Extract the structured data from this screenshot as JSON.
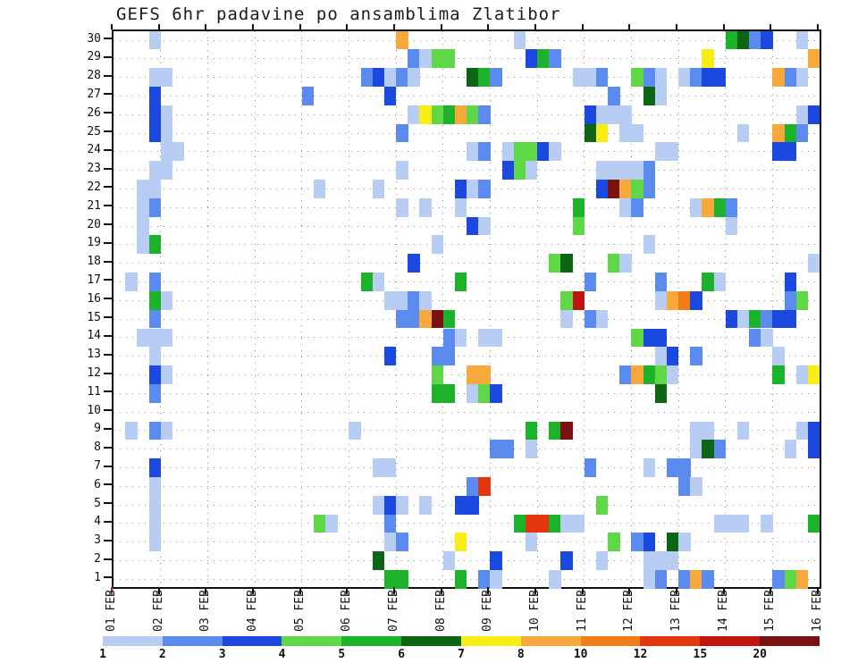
{
  "title": "GEFS 6hr padavine po ansamblima Zlatibor",
  "chart_data": {
    "type": "heatmap",
    "title": "GEFS 6hr padavine po ansamblima Zlatibor",
    "description": "6-hourly precipitation per ensemble member (1-30), 01 FEB - 16 FEB",
    "x_tick_labels": [
      "01 FEB",
      "02 FEB",
      "03 FEB",
      "04 FEB",
      "05 FEB",
      "06 FEB",
      "07 FEB",
      "08 FEB",
      "09 FEB",
      "10 FEB",
      "11 FEB",
      "12 FEB",
      "13 FEB",
      "14 FEB",
      "15 FEB",
      "16 FEB"
    ],
    "y_tick_labels": [
      "30",
      "29",
      "28",
      "27",
      "26",
      "25",
      "24",
      "23",
      "22",
      "21",
      "20",
      "19",
      "18",
      "17",
      "16",
      "15",
      "14",
      "13",
      "12",
      "11",
      "10",
      "9",
      "8",
      "7",
      "6",
      "5",
      "4",
      "3",
      "2",
      "1"
    ],
    "columns_per_day": 4,
    "n_columns": 60,
    "n_members": 30,
    "grid": true,
    "legend_position": "bottom",
    "legend": {
      "tick_labels": [
        "1",
        "2",
        "3",
        "4",
        "5",
        "6",
        "7",
        "8",
        "10",
        "12",
        "15",
        "20"
      ],
      "colors": [
        "#b7cdf4",
        "#5c8bf0",
        "#1b49e0",
        "#5fd848",
        "#1cb32b",
        "#0d6614",
        "#f8ee15",
        "#f7a93b",
        "#f57d17",
        "#e5370f",
        "#c11411",
        "#7c1112"
      ]
    },
    "palette": {
      "L": "#b7cdf4",
      "B": "#5c8bf0",
      "D": "#1b49e0",
      "g": "#5fd848",
      "G": "#1cb32b",
      "DG": "#0d6614",
      "Y": "#f8ee15",
      "O": "#f7a93b",
      "DO": "#f57d17",
      "R": "#e5370f",
      "RR": "#c11411",
      "DR": "#7c1112"
    },
    "level_ranges": {
      "L": "1-2",
      "B": "2-3",
      "D": "3-4",
      "g": "4-5",
      "G": "5-6",
      "DG": "6-7",
      "Y": "7-8",
      "O": "8-10",
      "DO": "10-12",
      "R": "12-15",
      "RR": "15-20",
      "DR": ">20"
    },
    "cells": [
      [
        30,
        3,
        "L"
      ],
      [
        30,
        24,
        "O"
      ],
      [
        30,
        34,
        "L"
      ],
      [
        30,
        52,
        "G"
      ],
      [
        30,
        53,
        "DG"
      ],
      [
        30,
        54,
        "B"
      ],
      [
        30,
        55,
        "D"
      ],
      [
        30,
        58,
        "L"
      ],
      [
        29,
        25,
        "B"
      ],
      [
        29,
        26,
        "L"
      ],
      [
        29,
        27,
        "g"
      ],
      [
        29,
        28,
        "g"
      ],
      [
        29,
        35,
        "D"
      ],
      [
        29,
        36,
        "G"
      ],
      [
        29,
        37,
        "B"
      ],
      [
        29,
        50,
        "Y"
      ],
      [
        29,
        59,
        "O"
      ],
      [
        28,
        3,
        "L"
      ],
      [
        28,
        4,
        "L"
      ],
      [
        28,
        21,
        "B"
      ],
      [
        28,
        22,
        "D"
      ],
      [
        28,
        23,
        "L"
      ],
      [
        28,
        24,
        "B"
      ],
      [
        28,
        25,
        "L"
      ],
      [
        28,
        30,
        "DG"
      ],
      [
        28,
        31,
        "G"
      ],
      [
        28,
        32,
        "B"
      ],
      [
        28,
        39,
        "L"
      ],
      [
        28,
        40,
        "L"
      ],
      [
        28,
        41,
        "B"
      ],
      [
        28,
        44,
        "g"
      ],
      [
        28,
        45,
        "B"
      ],
      [
        28,
        46,
        "L"
      ],
      [
        28,
        48,
        "L"
      ],
      [
        28,
        49,
        "B"
      ],
      [
        28,
        50,
        "D"
      ],
      [
        28,
        51,
        "D"
      ],
      [
        28,
        56,
        "O"
      ],
      [
        28,
        57,
        "B"
      ],
      [
        28,
        58,
        "L"
      ],
      [
        27,
        3,
        "D"
      ],
      [
        27,
        16,
        "B"
      ],
      [
        27,
        23,
        "D"
      ],
      [
        27,
        42,
        "B"
      ],
      [
        27,
        45,
        "DG"
      ],
      [
        27,
        46,
        "L"
      ],
      [
        26,
        3,
        "D"
      ],
      [
        26,
        4,
        "L"
      ],
      [
        26,
        25,
        "L"
      ],
      [
        26,
        26,
        "Y"
      ],
      [
        26,
        27,
        "g"
      ],
      [
        26,
        28,
        "G"
      ],
      [
        26,
        29,
        "O"
      ],
      [
        26,
        30,
        "g"
      ],
      [
        26,
        31,
        "B"
      ],
      [
        26,
        40,
        "D"
      ],
      [
        26,
        41,
        "L"
      ],
      [
        26,
        42,
        "L"
      ],
      [
        26,
        43,
        "L"
      ],
      [
        26,
        58,
        "L"
      ],
      [
        26,
        59,
        "D"
      ],
      [
        25,
        3,
        "D"
      ],
      [
        25,
        4,
        "L"
      ],
      [
        25,
        24,
        "B"
      ],
      [
        25,
        40,
        "DG"
      ],
      [
        25,
        41,
        "Y"
      ],
      [
        25,
        43,
        "L"
      ],
      [
        25,
        44,
        "L"
      ],
      [
        25,
        53,
        "L"
      ],
      [
        25,
        56,
        "O"
      ],
      [
        25,
        57,
        "G"
      ],
      [
        25,
        58,
        "B"
      ],
      [
        24,
        4,
        "L"
      ],
      [
        24,
        5,
        "L"
      ],
      [
        24,
        30,
        "L"
      ],
      [
        24,
        31,
        "B"
      ],
      [
        24,
        33,
        "L"
      ],
      [
        24,
        34,
        "g"
      ],
      [
        24,
        35,
        "g"
      ],
      [
        24,
        36,
        "D"
      ],
      [
        24,
        37,
        "L"
      ],
      [
        24,
        46,
        "L"
      ],
      [
        24,
        47,
        "L"
      ],
      [
        24,
        56,
        "D"
      ],
      [
        24,
        57,
        "D"
      ],
      [
        23,
        3,
        "L"
      ],
      [
        23,
        4,
        "L"
      ],
      [
        23,
        24,
        "L"
      ],
      [
        23,
        33,
        "D"
      ],
      [
        23,
        34,
        "g"
      ],
      [
        23,
        35,
        "L"
      ],
      [
        23,
        41,
        "L"
      ],
      [
        23,
        42,
        "L"
      ],
      [
        23,
        43,
        "L"
      ],
      [
        23,
        44,
        "L"
      ],
      [
        23,
        45,
        "B"
      ],
      [
        22,
        2,
        "L"
      ],
      [
        22,
        3,
        "L"
      ],
      [
        22,
        17,
        "L"
      ],
      [
        22,
        22,
        "L"
      ],
      [
        22,
        29,
        "D"
      ],
      [
        22,
        30,
        "L"
      ],
      [
        22,
        31,
        "B"
      ],
      [
        22,
        41,
        "D"
      ],
      [
        22,
        42,
        "DR"
      ],
      [
        22,
        43,
        "O"
      ],
      [
        22,
        44,
        "g"
      ],
      [
        22,
        45,
        "B"
      ],
      [
        21,
        2,
        "L"
      ],
      [
        21,
        3,
        "B"
      ],
      [
        21,
        24,
        "L"
      ],
      [
        21,
        26,
        "L"
      ],
      [
        21,
        29,
        "L"
      ],
      [
        21,
        39,
        "G"
      ],
      [
        21,
        43,
        "L"
      ],
      [
        21,
        44,
        "B"
      ],
      [
        21,
        49,
        "L"
      ],
      [
        21,
        50,
        "O"
      ],
      [
        21,
        51,
        "G"
      ],
      [
        21,
        52,
        "B"
      ],
      [
        20,
        2,
        "L"
      ],
      [
        20,
        30,
        "D"
      ],
      [
        20,
        31,
        "L"
      ],
      [
        20,
        39,
        "g"
      ],
      [
        20,
        52,
        "L"
      ],
      [
        19,
        2,
        "L"
      ],
      [
        19,
        3,
        "G"
      ],
      [
        19,
        27,
        "L"
      ],
      [
        19,
        45,
        "L"
      ],
      [
        18,
        25,
        "D"
      ],
      [
        18,
        37,
        "g"
      ],
      [
        18,
        38,
        "DG"
      ],
      [
        18,
        42,
        "g"
      ],
      [
        18,
        43,
        "L"
      ],
      [
        18,
        59,
        "L"
      ],
      [
        17,
        1,
        "L"
      ],
      [
        17,
        3,
        "B"
      ],
      [
        17,
        21,
        "G"
      ],
      [
        17,
        22,
        "L"
      ],
      [
        17,
        29,
        "G"
      ],
      [
        17,
        40,
        "B"
      ],
      [
        17,
        46,
        "B"
      ],
      [
        17,
        50,
        "G"
      ],
      [
        17,
        51,
        "L"
      ],
      [
        17,
        57,
        "D"
      ],
      [
        16,
        3,
        "G"
      ],
      [
        16,
        4,
        "L"
      ],
      [
        16,
        23,
        "L"
      ],
      [
        16,
        24,
        "L"
      ],
      [
        16,
        25,
        "B"
      ],
      [
        16,
        26,
        "L"
      ],
      [
        16,
        38,
        "g"
      ],
      [
        16,
        39,
        "RR"
      ],
      [
        16,
        46,
        "L"
      ],
      [
        16,
        47,
        "O"
      ],
      [
        16,
        48,
        "DO"
      ],
      [
        16,
        49,
        "D"
      ],
      [
        16,
        57,
        "B"
      ],
      [
        16,
        58,
        "g"
      ],
      [
        15,
        3,
        "B"
      ],
      [
        15,
        24,
        "B"
      ],
      [
        15,
        25,
        "B"
      ],
      [
        15,
        26,
        "O"
      ],
      [
        15,
        27,
        "DR"
      ],
      [
        15,
        28,
        "G"
      ],
      [
        15,
        38,
        "L"
      ],
      [
        15,
        40,
        "B"
      ],
      [
        15,
        41,
        "L"
      ],
      [
        15,
        52,
        "D"
      ],
      [
        15,
        53,
        "L"
      ],
      [
        15,
        54,
        "G"
      ],
      [
        15,
        55,
        "B"
      ],
      [
        15,
        56,
        "D"
      ],
      [
        15,
        57,
        "D"
      ],
      [
        14,
        2,
        "L"
      ],
      [
        14,
        3,
        "L"
      ],
      [
        14,
        4,
        "L"
      ],
      [
        14,
        28,
        "B"
      ],
      [
        14,
        29,
        "L"
      ],
      [
        14,
        31,
        "L"
      ],
      [
        14,
        32,
        "L"
      ],
      [
        14,
        44,
        "g"
      ],
      [
        14,
        45,
        "D"
      ],
      [
        14,
        46,
        "D"
      ],
      [
        14,
        54,
        "B"
      ],
      [
        14,
        55,
        "L"
      ],
      [
        13,
        3,
        "L"
      ],
      [
        13,
        23,
        "D"
      ],
      [
        13,
        27,
        "B"
      ],
      [
        13,
        28,
        "B"
      ],
      [
        13,
        46,
        "L"
      ],
      [
        13,
        47,
        "D"
      ],
      [
        13,
        49,
        "B"
      ],
      [
        13,
        56,
        "L"
      ],
      [
        12,
        3,
        "D"
      ],
      [
        12,
        4,
        "L"
      ],
      [
        12,
        27,
        "g"
      ],
      [
        12,
        30,
        "O"
      ],
      [
        12,
        31,
        "O"
      ],
      [
        12,
        43,
        "B"
      ],
      [
        12,
        44,
        "O"
      ],
      [
        12,
        45,
        "G"
      ],
      [
        12,
        46,
        "g"
      ],
      [
        12,
        47,
        "L"
      ],
      [
        12,
        56,
        "G"
      ],
      [
        12,
        58,
        "L"
      ],
      [
        12,
        59,
        "Y"
      ],
      [
        11,
        3,
        "B"
      ],
      [
        11,
        27,
        "G"
      ],
      [
        11,
        28,
        "G"
      ],
      [
        11,
        30,
        "L"
      ],
      [
        11,
        31,
        "g"
      ],
      [
        11,
        32,
        "D"
      ],
      [
        11,
        46,
        "DG"
      ],
      [
        9,
        1,
        "L"
      ],
      [
        9,
        3,
        "B"
      ],
      [
        9,
        4,
        "L"
      ],
      [
        9,
        20,
        "L"
      ],
      [
        9,
        35,
        "G"
      ],
      [
        9,
        37,
        "G"
      ],
      [
        9,
        38,
        "DR"
      ],
      [
        9,
        49,
        "L"
      ],
      [
        9,
        50,
        "L"
      ],
      [
        9,
        53,
        "L"
      ],
      [
        9,
        58,
        "L"
      ],
      [
        9,
        59,
        "D"
      ],
      [
        8,
        32,
        "B"
      ],
      [
        8,
        33,
        "B"
      ],
      [
        8,
        35,
        "L"
      ],
      [
        8,
        49,
        "L"
      ],
      [
        8,
        50,
        "DG"
      ],
      [
        8,
        51,
        "B"
      ],
      [
        8,
        57,
        "L"
      ],
      [
        8,
        59,
        "D"
      ],
      [
        7,
        3,
        "D"
      ],
      [
        7,
        22,
        "L"
      ],
      [
        7,
        23,
        "L"
      ],
      [
        7,
        40,
        "B"
      ],
      [
        7,
        45,
        "L"
      ],
      [
        7,
        47,
        "B"
      ],
      [
        7,
        48,
        "B"
      ],
      [
        6,
        3,
        "L"
      ],
      [
        6,
        30,
        "B"
      ],
      [
        6,
        31,
        "R"
      ],
      [
        6,
        48,
        "B"
      ],
      [
        6,
        49,
        "L"
      ],
      [
        5,
        3,
        "L"
      ],
      [
        5,
        22,
        "L"
      ],
      [
        5,
        23,
        "D"
      ],
      [
        5,
        24,
        "L"
      ],
      [
        5,
        26,
        "L"
      ],
      [
        5,
        29,
        "D"
      ],
      [
        5,
        30,
        "D"
      ],
      [
        5,
        41,
        "g"
      ],
      [
        4,
        3,
        "L"
      ],
      [
        4,
        17,
        "g"
      ],
      [
        4,
        18,
        "L"
      ],
      [
        4,
        23,
        "B"
      ],
      [
        4,
        34,
        "G"
      ],
      [
        4,
        35,
        "R"
      ],
      [
        4,
        36,
        "R"
      ],
      [
        4,
        37,
        "G"
      ],
      [
        4,
        38,
        "L"
      ],
      [
        4,
        39,
        "L"
      ],
      [
        4,
        51,
        "L"
      ],
      [
        4,
        52,
        "L"
      ],
      [
        4,
        53,
        "L"
      ],
      [
        4,
        55,
        "L"
      ],
      [
        4,
        59,
        "G"
      ],
      [
        3,
        3,
        "L"
      ],
      [
        3,
        23,
        "L"
      ],
      [
        3,
        24,
        "B"
      ],
      [
        3,
        29,
        "Y"
      ],
      [
        3,
        35,
        "L"
      ],
      [
        3,
        42,
        "g"
      ],
      [
        3,
        44,
        "B"
      ],
      [
        3,
        45,
        "D"
      ],
      [
        3,
        47,
        "DG"
      ],
      [
        3,
        48,
        "L"
      ],
      [
        2,
        22,
        "DG"
      ],
      [
        2,
        28,
        "L"
      ],
      [
        2,
        32,
        "D"
      ],
      [
        2,
        38,
        "D"
      ],
      [
        2,
        41,
        "L"
      ],
      [
        2,
        45,
        "L"
      ],
      [
        2,
        46,
        "L"
      ],
      [
        2,
        47,
        "L"
      ],
      [
        1,
        23,
        "G"
      ],
      [
        1,
        24,
        "G"
      ],
      [
        1,
        29,
        "G"
      ],
      [
        1,
        31,
        "B"
      ],
      [
        1,
        32,
        "L"
      ],
      [
        1,
        37,
        "L"
      ],
      [
        1,
        45,
        "L"
      ],
      [
        1,
        46,
        "B"
      ],
      [
        1,
        48,
        "B"
      ],
      [
        1,
        49,
        "O"
      ],
      [
        1,
        50,
        "B"
      ],
      [
        1,
        56,
        "B"
      ],
      [
        1,
        57,
        "g"
      ],
      [
        1,
        58,
        "O"
      ]
    ]
  }
}
